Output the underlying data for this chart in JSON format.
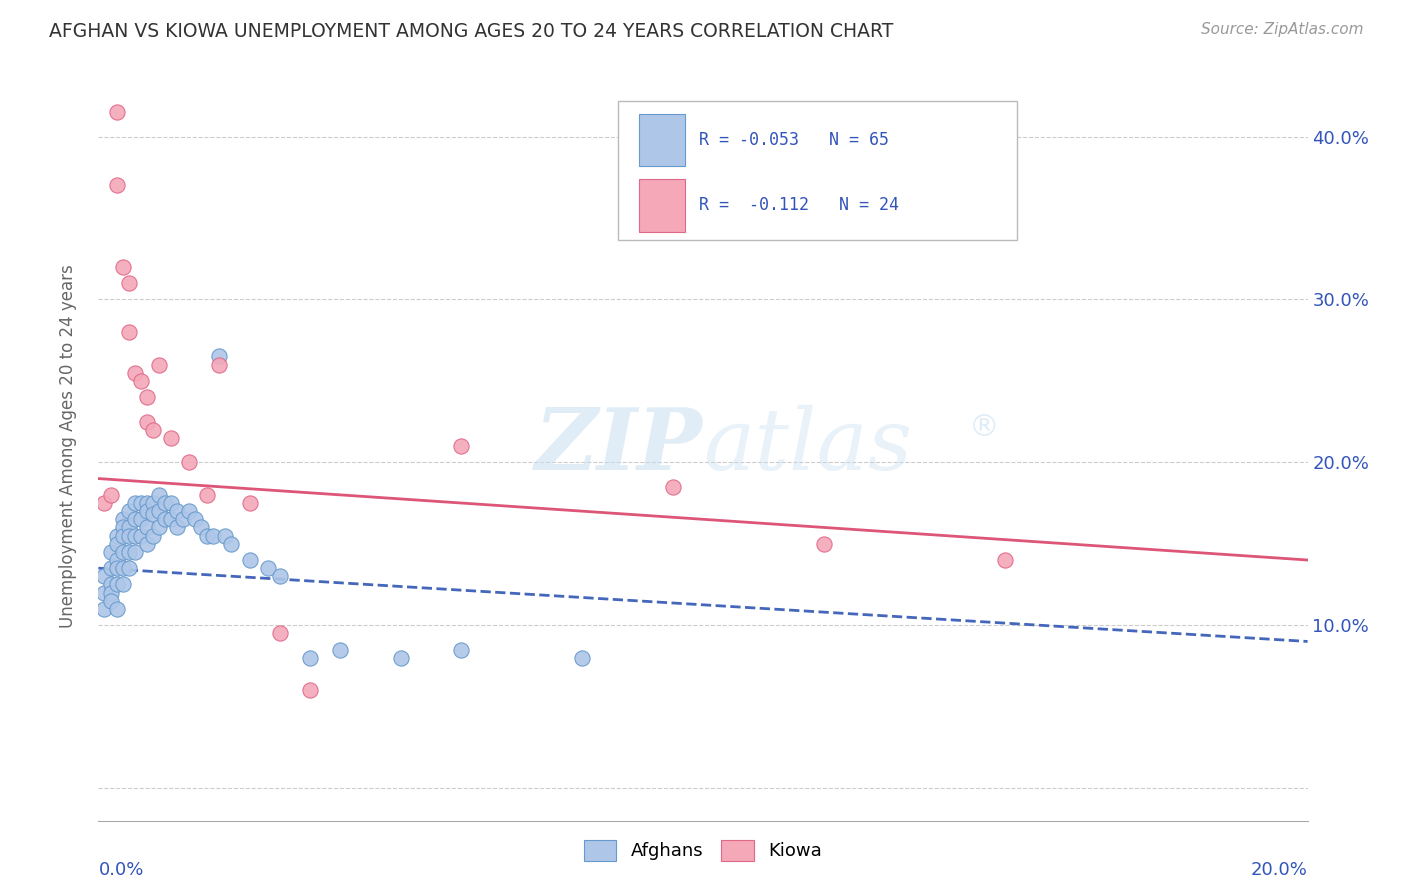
{
  "title": "AFGHAN VS KIOWA UNEMPLOYMENT AMONG AGES 20 TO 24 YEARS CORRELATION CHART",
  "source": "Source: ZipAtlas.com",
  "ylabel": "Unemployment Among Ages 20 to 24 years",
  "xlim": [
    0.0,
    0.2
  ],
  "ylim": [
    -0.02,
    0.44
  ],
  "yticks": [
    0.0,
    0.1,
    0.2,
    0.3,
    0.4
  ],
  "ytick_labels": [
    "",
    "10.0%",
    "20.0%",
    "30.0%",
    "40.0%"
  ],
  "title_color": "#333333",
  "source_color": "#999999",
  "background_color": "#ffffff",
  "grid_color": "#cccccc",
  "legend_label_color": "#3355bb",
  "afghan_color": "#aec6e8",
  "afghan_edge_color": "#6699cc",
  "kiowa_color": "#f4a8b8",
  "kiowa_edge_color": "#e06888",
  "afghan_line_color": "#4466bb",
  "kiowa_line_color": "#dd5577",
  "R_afghan": -0.053,
  "N_afghan": 65,
  "R_kiowa": -0.112,
  "N_kiowa": 24,
  "afghan_x": [
    0.001,
    0.001,
    0.001,
    0.002,
    0.002,
    0.002,
    0.002,
    0.002,
    0.003,
    0.003,
    0.003,
    0.003,
    0.003,
    0.003,
    0.004,
    0.004,
    0.004,
    0.004,
    0.004,
    0.004,
    0.005,
    0.005,
    0.005,
    0.005,
    0.005,
    0.006,
    0.006,
    0.006,
    0.006,
    0.007,
    0.007,
    0.007,
    0.008,
    0.008,
    0.008,
    0.008,
    0.009,
    0.009,
    0.009,
    0.01,
    0.01,
    0.01,
    0.011,
    0.011,
    0.012,
    0.012,
    0.013,
    0.013,
    0.014,
    0.015,
    0.016,
    0.017,
    0.018,
    0.019,
    0.02,
    0.021,
    0.022,
    0.025,
    0.028,
    0.03,
    0.035,
    0.04,
    0.05,
    0.06,
    0.08
  ],
  "afghan_y": [
    0.13,
    0.12,
    0.11,
    0.145,
    0.135,
    0.125,
    0.12,
    0.115,
    0.155,
    0.15,
    0.14,
    0.135,
    0.125,
    0.11,
    0.165,
    0.16,
    0.155,
    0.145,
    0.135,
    0.125,
    0.17,
    0.16,
    0.155,
    0.145,
    0.135,
    0.175,
    0.165,
    0.155,
    0.145,
    0.175,
    0.165,
    0.155,
    0.175,
    0.17,
    0.16,
    0.15,
    0.175,
    0.168,
    0.155,
    0.18,
    0.17,
    0.16,
    0.175,
    0.165,
    0.175,
    0.165,
    0.17,
    0.16,
    0.165,
    0.17,
    0.165,
    0.16,
    0.155,
    0.155,
    0.265,
    0.155,
    0.15,
    0.14,
    0.135,
    0.13,
    0.08,
    0.085,
    0.08,
    0.085,
    0.08
  ],
  "kiowa_x": [
    0.001,
    0.002,
    0.003,
    0.003,
    0.004,
    0.005,
    0.005,
    0.006,
    0.007,
    0.008,
    0.008,
    0.009,
    0.01,
    0.012,
    0.015,
    0.018,
    0.02,
    0.025,
    0.03,
    0.035,
    0.06,
    0.095,
    0.12,
    0.15
  ],
  "kiowa_y": [
    0.175,
    0.18,
    0.415,
    0.37,
    0.32,
    0.31,
    0.28,
    0.255,
    0.25,
    0.24,
    0.225,
    0.22,
    0.26,
    0.215,
    0.2,
    0.18,
    0.26,
    0.175,
    0.095,
    0.06,
    0.21,
    0.185,
    0.15,
    0.14
  ],
  "watermark_text": "ZIPatlas",
  "watermark_reg": "®"
}
